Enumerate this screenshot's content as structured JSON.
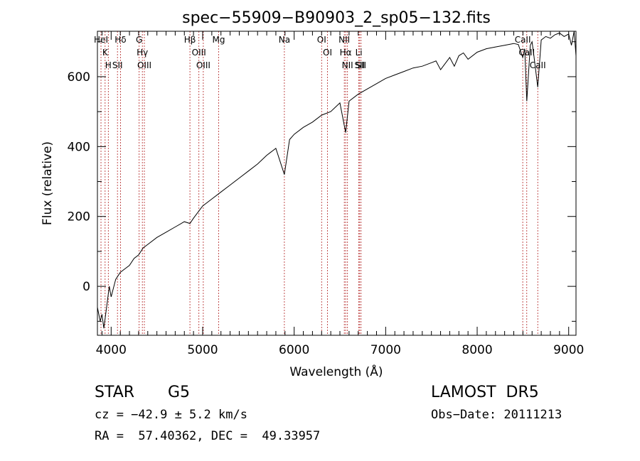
{
  "chart_data": {
    "type": "line",
    "title": "spec−55909−B90903_2_sp05−132.fits",
    "xlabel": "Wavelength (Å)",
    "ylabel": "Flux (relative)",
    "xlim": [
      3850,
      9080
    ],
    "ylim": [
      -140,
      730
    ],
    "xticks": [
      4000,
      5000,
      6000,
      7000,
      8000,
      9000
    ],
    "yticks": [
      0,
      200,
      400,
      600
    ],
    "grid": false,
    "line_color": "#000000",
    "marker_color": "#b22222",
    "series": [
      {
        "x": [
          3850,
          3880,
          3900,
          3920,
          3950,
          3980,
          4000,
          4050,
          4100,
          4150,
          4200,
          4250,
          4300,
          4350,
          4400,
          4500,
          4600,
          4700,
          4800,
          4861,
          4900,
          5000,
          5100,
          5200,
          5300,
          5400,
          5500,
          5600,
          5700,
          5800,
          5893,
          5950,
          6000,
          6100,
          6200,
          6300,
          6400,
          6500,
          6563,
          6600,
          6700,
          6800,
          6900,
          7000,
          7100,
          7200,
          7300,
          7400,
          7500,
          7550,
          7600,
          7700,
          7750,
          7800,
          7850,
          7900,
          8000,
          8100,
          8200,
          8300,
          8400,
          8450,
          8498,
          8520,
          8542,
          8580,
          8600,
          8620,
          8662,
          8700,
          8750,
          8800,
          8850,
          8900,
          8950,
          9000,
          9030,
          9060,
          9080
        ],
        "y": [
          -60,
          -100,
          -80,
          -120,
          -60,
          0,
          -30,
          20,
          40,
          50,
          60,
          80,
          90,
          110,
          120,
          140,
          155,
          170,
          185,
          180,
          195,
          230,
          250,
          270,
          290,
          310,
          330,
          350,
          375,
          395,
          320,
          420,
          435,
          455,
          470,
          490,
          500,
          525,
          440,
          530,
          550,
          565,
          580,
          595,
          605,
          615,
          625,
          630,
          640,
          645,
          620,
          655,
          630,
          660,
          668,
          650,
          670,
          680,
          685,
          690,
          695,
          692,
          655,
          680,
          530,
          690,
          700,
          660,
          570,
          705,
          715,
          710,
          720,
          725,
          715,
          722,
          690,
          730,
          660
        ]
      }
    ],
    "lines": [
      {
        "wave": 3889,
        "labels": [
          "HeI"
        ]
      },
      {
        "wave": 3934,
        "labels": [
          "K"
        ]
      },
      {
        "wave": 3969,
        "labels": [
          "H"
        ]
      },
      {
        "wave": 4069,
        "labels": [
          "SII"
        ]
      },
      {
        "wave": 4102,
        "labels": [
          "Hδ"
        ]
      },
      {
        "wave": 4306,
        "labels": [
          "G"
        ]
      },
      {
        "wave": 4341,
        "labels": [
          "Hγ"
        ]
      },
      {
        "wave": 4363,
        "labels": [
          "OIII"
        ]
      },
      {
        "wave": 4861,
        "labels": [
          "Hβ"
        ]
      },
      {
        "wave": 4959,
        "labels": [
          "OIII"
        ]
      },
      {
        "wave": 5007,
        "labels": [
          "OIII"
        ]
      },
      {
        "wave": 5175,
        "labels": [
          "Mg"
        ]
      },
      {
        "wave": 5893,
        "labels": [
          "Na"
        ]
      },
      {
        "wave": 6300,
        "labels": [
          "OI"
        ]
      },
      {
        "wave": 6364,
        "labels": [
          "OI"
        ]
      },
      {
        "wave": 6548,
        "labels": [
          "NII"
        ]
      },
      {
        "wave": 6563,
        "labels": [
          "Hα"
        ]
      },
      {
        "wave": 6583,
        "labels": [
          "NII"
        ]
      },
      {
        "wave": 6707,
        "labels": [
          "Li"
        ]
      },
      {
        "wave": 6716,
        "labels": [
          "SII"
        ]
      },
      {
        "wave": 6731,
        "labels": [
          "SII"
        ]
      },
      {
        "wave": 8498,
        "labels": [
          "CaII"
        ]
      },
      {
        "wave": 8542,
        "labels": [
          "CaII"
        ]
      },
      {
        "wave": 8662,
        "labels": [
          "CaII"
        ]
      }
    ]
  },
  "info": {
    "class": "STAR",
    "subclass": "G5",
    "survey": "LAMOST  DR5",
    "cz": "cz = −42.9 ± 5.2 km/s",
    "obs_date": "Obs−Date: 20111213",
    "coords": "RA =  57.40362, DEC =  49.33957"
  }
}
